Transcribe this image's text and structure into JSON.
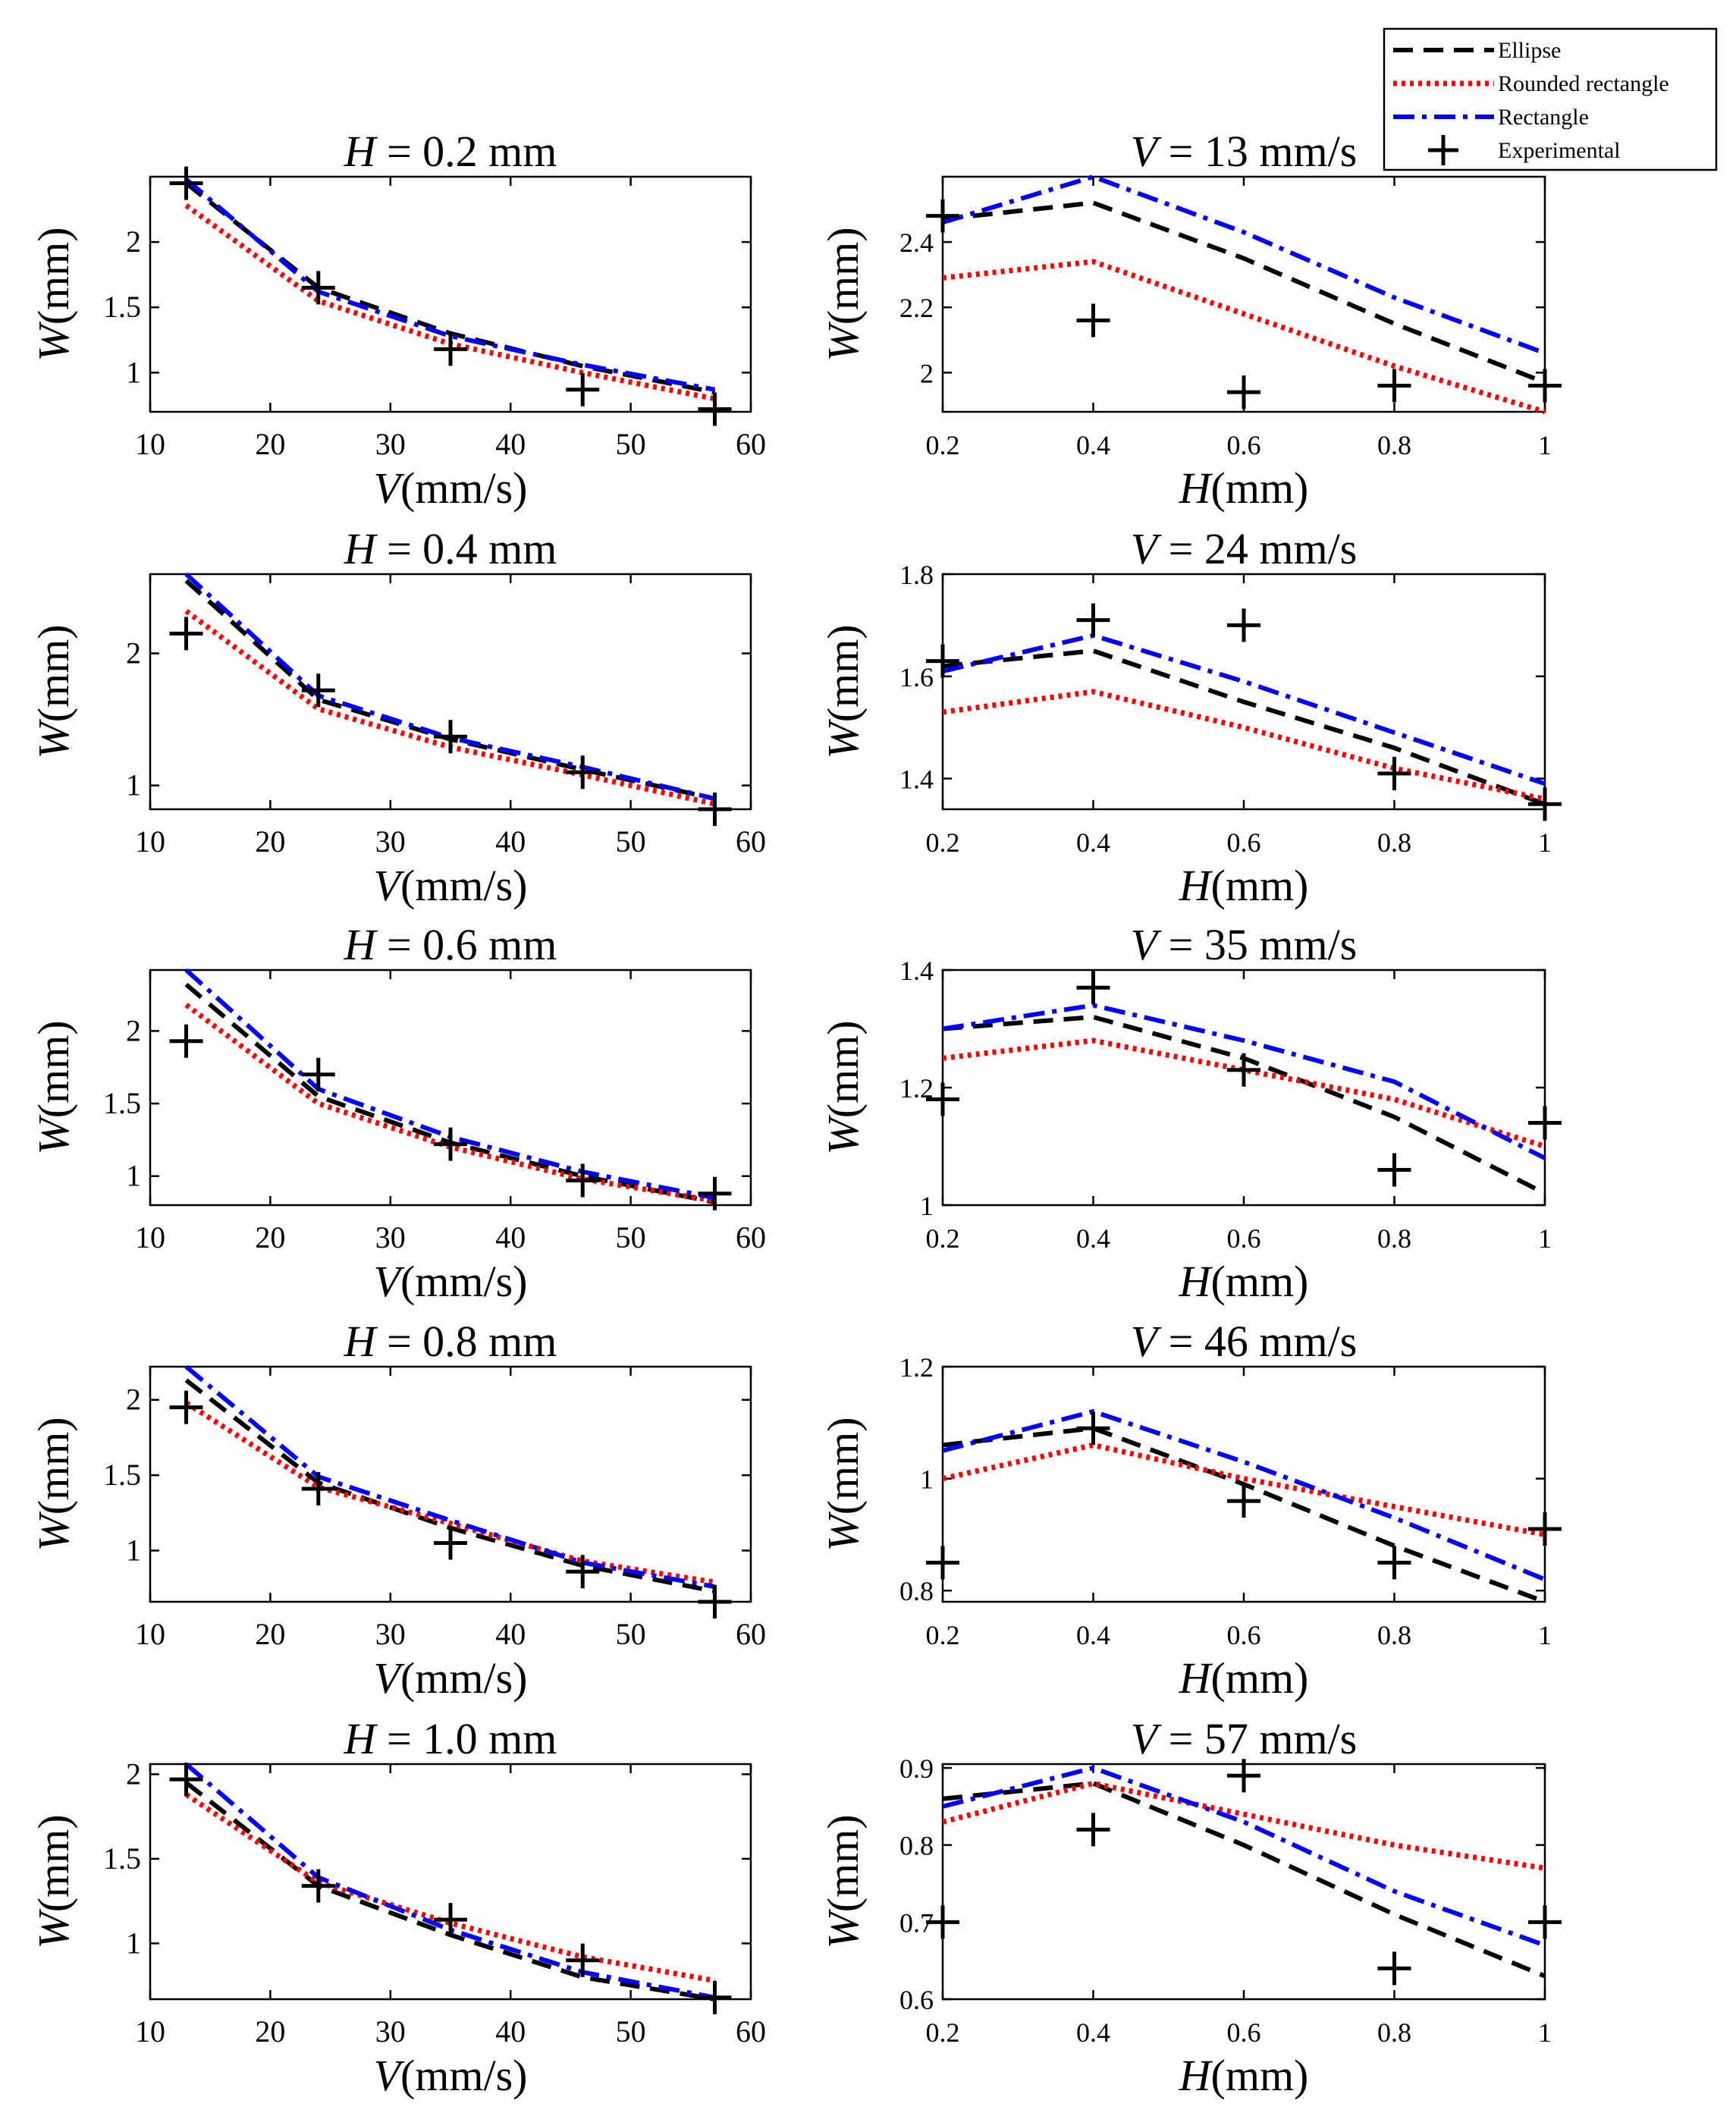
{
  "colors": {
    "ellipse": "#000000",
    "rounded_rectangle": "#ff0000",
    "rectangle": "#0000ff",
    "experimental": "#000000",
    "axes": "#000000",
    "background": "#ffffff"
  },
  "legend": {
    "items": [
      {
        "key": "ellipse",
        "label": "Ellipse",
        "style": "dashed"
      },
      {
        "key": "rounded_rectangle",
        "label": "Rounded rectangle",
        "style": "dotted"
      },
      {
        "key": "rectangle",
        "label": "Rectangle",
        "style": "dashdot"
      },
      {
        "key": "experimental",
        "label": "Experimental",
        "style": "marker-plus"
      }
    ]
  },
  "chart_data": [
    {
      "type": "line",
      "title_var": "H",
      "title_rest": " = 0.2 mm",
      "xlabel_var": "V",
      "xlabel_unit": "(mm/s)",
      "ylabel_var": "W",
      "ylabel_unit": "(mm)",
      "xlim": [
        10,
        60
      ],
      "ylim": [
        0.7,
        2.5
      ],
      "xticks": [
        10,
        20,
        30,
        40,
        50,
        60
      ],
      "yticks": [
        1,
        1.5,
        2
      ],
      "ytick_labels": [
        "1",
        "1.5",
        "2"
      ],
      "x": [
        13,
        24,
        35,
        46,
        57
      ],
      "series": [
        {
          "key": "ellipse",
          "name": "Ellipse",
          "values": [
            2.45,
            1.65,
            1.3,
            1.05,
            0.85
          ]
        },
        {
          "key": "rounded_rectangle",
          "name": "Rounded rectangle",
          "values": [
            2.28,
            1.55,
            1.22,
            1.0,
            0.8
          ]
        },
        {
          "key": "rectangle",
          "name": "Rectangle",
          "values": [
            2.48,
            1.62,
            1.28,
            1.06,
            0.87
          ]
        },
        {
          "key": "experimental",
          "name": "Experimental",
          "values": [
            2.45,
            1.65,
            1.18,
            0.87,
            0.72
          ]
        }
      ]
    },
    {
      "type": "line",
      "title_var": "V",
      "title_rest": " = 13 mm/s",
      "xlabel_var": "H",
      "xlabel_unit": "(mm)",
      "ylabel_var": "W",
      "ylabel_unit": "(mm)",
      "xlim": [
        0.2,
        1.0
      ],
      "ylim": [
        1.88,
        2.6
      ],
      "xticks": [
        0.2,
        0.4,
        0.6,
        0.8,
        1.0
      ],
      "xtick_labels": [
        "0.2",
        "0.4",
        "0.6",
        "0.8",
        "1"
      ],
      "yticks": [
        2.0,
        2.2,
        2.4
      ],
      "ytick_labels": [
        "2",
        "2.2",
        "2.4"
      ],
      "x": [
        0.2,
        0.4,
        0.6,
        0.8,
        1.0
      ],
      "series": [
        {
          "key": "ellipse",
          "name": "Ellipse",
          "values": [
            2.47,
            2.52,
            2.35,
            2.15,
            1.97
          ]
        },
        {
          "key": "rounded_rectangle",
          "name": "Rounded rectangle",
          "values": [
            2.29,
            2.34,
            2.18,
            2.02,
            1.88
          ]
        },
        {
          "key": "rectangle",
          "name": "Rectangle",
          "values": [
            2.46,
            2.6,
            2.43,
            2.23,
            2.06
          ]
        },
        {
          "key": "experimental",
          "name": "Experimental",
          "values": [
            2.48,
            2.16,
            1.94,
            1.96,
            1.96
          ]
        }
      ]
    },
    {
      "type": "line",
      "title_var": "H",
      "title_rest": " = 0.4 mm",
      "xlabel_var": "V",
      "xlabel_unit": "(mm/s)",
      "ylabel_var": "W",
      "ylabel_unit": "(mm)",
      "xlim": [
        10,
        60
      ],
      "ylim": [
        0.82,
        2.6
      ],
      "xticks": [
        10,
        20,
        30,
        40,
        50,
        60
      ],
      "yticks": [
        1,
        2
      ],
      "ytick_labels": [
        "1",
        "2"
      ],
      "x": [
        13,
        24,
        35,
        46,
        57
      ],
      "series": [
        {
          "key": "ellipse",
          "name": "Ellipse",
          "values": [
            2.55,
            1.65,
            1.35,
            1.12,
            0.9
          ]
        },
        {
          "key": "rounded_rectangle",
          "name": "Rounded rectangle",
          "values": [
            2.32,
            1.58,
            1.29,
            1.08,
            0.86
          ]
        },
        {
          "key": "rectangle",
          "name": "Rectangle",
          "values": [
            2.6,
            1.68,
            1.36,
            1.14,
            0.9
          ]
        },
        {
          "key": "experimental",
          "name": "Experimental",
          "values": [
            2.15,
            1.72,
            1.37,
            1.1,
            0.82
          ]
        }
      ]
    },
    {
      "type": "line",
      "title_var": "V",
      "title_rest": " = 24 mm/s",
      "xlabel_var": "H",
      "xlabel_unit": "(mm)",
      "ylabel_var": "W",
      "ylabel_unit": "(mm)",
      "xlim": [
        0.2,
        1.0
      ],
      "ylim": [
        1.34,
        1.8
      ],
      "xticks": [
        0.2,
        0.4,
        0.6,
        0.8,
        1.0
      ],
      "xtick_labels": [
        "0.2",
        "0.4",
        "0.6",
        "0.8",
        "1"
      ],
      "yticks": [
        1.4,
        1.6,
        1.8
      ],
      "ytick_labels": [
        "1.4",
        "1.6",
        "1.8"
      ],
      "x": [
        0.2,
        0.4,
        0.6,
        0.8,
        1.0
      ],
      "series": [
        {
          "key": "ellipse",
          "name": "Ellipse",
          "values": [
            1.62,
            1.65,
            1.55,
            1.46,
            1.35
          ]
        },
        {
          "key": "rounded_rectangle",
          "name": "Rounded rectangle",
          "values": [
            1.53,
            1.57,
            1.5,
            1.42,
            1.36
          ]
        },
        {
          "key": "rectangle",
          "name": "Rectangle",
          "values": [
            1.61,
            1.68,
            1.59,
            1.49,
            1.39
          ]
        },
        {
          "key": "experimental",
          "name": "Experimental",
          "values": [
            1.63,
            1.71,
            1.7,
            1.41,
            1.35
          ]
        }
      ]
    },
    {
      "type": "line",
      "title_var": "H",
      "title_rest": " = 0.6 mm",
      "xlabel_var": "V",
      "xlabel_unit": "(mm/s)",
      "ylabel_var": "W",
      "ylabel_unit": "(mm)",
      "xlim": [
        10,
        60
      ],
      "ylim": [
        0.8,
        2.42
      ],
      "xticks": [
        10,
        20,
        30,
        40,
        50,
        60
      ],
      "yticks": [
        1,
        1.5,
        2
      ],
      "ytick_labels": [
        "1",
        "1.5",
        "2"
      ],
      "x": [
        13,
        24,
        35,
        46,
        57
      ],
      "series": [
        {
          "key": "ellipse",
          "name": "Ellipse",
          "values": [
            2.32,
            1.55,
            1.23,
            1.0,
            0.82
          ]
        },
        {
          "key": "rounded_rectangle",
          "name": "Rounded rectangle",
          "values": [
            2.18,
            1.5,
            1.2,
            0.98,
            0.83
          ]
        },
        {
          "key": "rectangle",
          "name": "Rectangle",
          "values": [
            2.42,
            1.6,
            1.27,
            1.03,
            0.85
          ]
        },
        {
          "key": "experimental",
          "name": "Experimental",
          "values": [
            1.93,
            1.7,
            1.22,
            0.97,
            0.88
          ]
        }
      ]
    },
    {
      "type": "line",
      "title_var": "V",
      "title_rest": " = 35 mm/s",
      "xlabel_var": "H",
      "xlabel_unit": "(mm)",
      "ylabel_var": "W",
      "ylabel_unit": "(mm)",
      "xlim": [
        0.2,
        1.0
      ],
      "ylim": [
        1.0,
        1.4
      ],
      "xticks": [
        0.2,
        0.4,
        0.6,
        0.8,
        1.0
      ],
      "xtick_labels": [
        "0.2",
        "0.4",
        "0.6",
        "0.8",
        "1"
      ],
      "yticks": [
        1.0,
        1.2,
        1.4
      ],
      "ytick_labels": [
        "1",
        "1.2",
        "1.4"
      ],
      "x": [
        0.2,
        0.4,
        0.6,
        0.8,
        1.0
      ],
      "series": [
        {
          "key": "ellipse",
          "name": "Ellipse",
          "values": [
            1.3,
            1.32,
            1.25,
            1.15,
            1.02
          ]
        },
        {
          "key": "rounded_rectangle",
          "name": "Rounded rectangle",
          "values": [
            1.25,
            1.28,
            1.23,
            1.18,
            1.1
          ]
        },
        {
          "key": "rectangle",
          "name": "Rectangle",
          "values": [
            1.3,
            1.34,
            1.28,
            1.21,
            1.08
          ]
        },
        {
          "key": "experimental",
          "name": "Experimental",
          "values": [
            1.18,
            1.37,
            1.23,
            1.06,
            1.14
          ]
        }
      ]
    },
    {
      "type": "line",
      "title_var": "H",
      "title_rest": " = 0.8 mm",
      "xlabel_var": "V",
      "xlabel_unit": "(mm/s)",
      "ylabel_var": "W",
      "ylabel_unit": "(mm)",
      "xlim": [
        10,
        60
      ],
      "ylim": [
        0.66,
        2.22
      ],
      "xticks": [
        10,
        20,
        30,
        40,
        50,
        60
      ],
      "yticks": [
        1,
        1.5,
        2
      ],
      "ytick_labels": [
        "1",
        "1.5",
        "2"
      ],
      "x": [
        13,
        24,
        35,
        46,
        57
      ],
      "series": [
        {
          "key": "ellipse",
          "name": "Ellipse",
          "values": [
            2.13,
            1.45,
            1.15,
            0.9,
            0.73
          ]
        },
        {
          "key": "rounded_rectangle",
          "name": "Rounded rectangle",
          "values": [
            1.98,
            1.42,
            1.18,
            0.93,
            0.79
          ]
        },
        {
          "key": "rectangle",
          "name": "Rectangle",
          "values": [
            2.22,
            1.49,
            1.2,
            0.92,
            0.76
          ]
        },
        {
          "key": "experimental",
          "name": "Experimental",
          "values": [
            1.95,
            1.41,
            1.05,
            0.86,
            0.66
          ]
        }
      ]
    },
    {
      "type": "line",
      "title_var": "V",
      "title_rest": " = 46 mm/s",
      "xlabel_var": "H",
      "xlabel_unit": "(mm)",
      "ylabel_var": "W",
      "ylabel_unit": "(mm)",
      "xlim": [
        0.2,
        1.0
      ],
      "ylim": [
        0.78,
        1.2
      ],
      "xticks": [
        0.2,
        0.4,
        0.6,
        0.8,
        1.0
      ],
      "xtick_labels": [
        "0.2",
        "0.4",
        "0.6",
        "0.8",
        "1"
      ],
      "yticks": [
        0.8,
        1.0,
        1.2
      ],
      "ytick_labels": [
        "0.8",
        "1",
        "1.2"
      ],
      "x": [
        0.2,
        0.4,
        0.6,
        0.8,
        1.0
      ],
      "series": [
        {
          "key": "ellipse",
          "name": "Ellipse",
          "values": [
            1.06,
            1.09,
            0.99,
            0.88,
            0.78
          ]
        },
        {
          "key": "rounded_rectangle",
          "name": "Rounded rectangle",
          "values": [
            1.0,
            1.06,
            1.0,
            0.95,
            0.9
          ]
        },
        {
          "key": "rectangle",
          "name": "Rectangle",
          "values": [
            1.05,
            1.12,
            1.03,
            0.93,
            0.82
          ]
        },
        {
          "key": "experimental",
          "name": "Experimental",
          "values": [
            0.85,
            1.09,
            0.96,
            0.85,
            0.91
          ]
        }
      ]
    },
    {
      "type": "line",
      "title_var": "H",
      "title_rest": " = 1.0 mm",
      "xlabel_var": "V",
      "xlabel_unit": "(mm/s)",
      "ylabel_var": "W",
      "ylabel_unit": "(mm)",
      "xlim": [
        10,
        60
      ],
      "ylim": [
        0.67,
        2.06
      ],
      "xticks": [
        10,
        20,
        30,
        40,
        50,
        60
      ],
      "yticks": [
        1,
        1.5,
        2
      ],
      "ytick_labels": [
        "1",
        "1.5",
        "2"
      ],
      "x": [
        13,
        24,
        35,
        46,
        57
      ],
      "series": [
        {
          "key": "ellipse",
          "name": "Ellipse",
          "values": [
            1.95,
            1.34,
            1.05,
            0.8,
            0.67
          ]
        },
        {
          "key": "rounded_rectangle",
          "name": "Rounded rectangle",
          "values": [
            1.88,
            1.36,
            1.12,
            0.92,
            0.78
          ]
        },
        {
          "key": "rectangle",
          "name": "Rectangle",
          "values": [
            2.06,
            1.39,
            1.08,
            0.83,
            0.68
          ]
        },
        {
          "key": "experimental",
          "name": "Experimental",
          "values": [
            1.97,
            1.34,
            1.14,
            0.9,
            0.68
          ]
        }
      ]
    },
    {
      "type": "line",
      "title_var": "V",
      "title_rest": " = 57 mm/s",
      "xlabel_var": "H",
      "xlabel_unit": "(mm)",
      "ylabel_var": "W",
      "ylabel_unit": "(mm)",
      "xlim": [
        0.2,
        1.0
      ],
      "ylim": [
        0.6,
        0.905
      ],
      "xticks": [
        0.2,
        0.4,
        0.6,
        0.8,
        1.0
      ],
      "xtick_labels": [
        "0.2",
        "0.4",
        "0.6",
        "0.8",
        "1"
      ],
      "yticks": [
        0.6,
        0.7,
        0.8,
        0.9
      ],
      "ytick_labels": [
        "0.6",
        "0.7",
        "0.8",
        "0.9"
      ],
      "x": [
        0.2,
        0.4,
        0.6,
        0.8,
        1.0
      ],
      "series": [
        {
          "key": "ellipse",
          "name": "Ellipse",
          "values": [
            0.86,
            0.88,
            0.8,
            0.71,
            0.63
          ]
        },
        {
          "key": "rounded_rectangle",
          "name": "Rounded rectangle",
          "values": [
            0.83,
            0.88,
            0.84,
            0.8,
            0.77
          ]
        },
        {
          "key": "rectangle",
          "name": "Rectangle",
          "values": [
            0.85,
            0.9,
            0.83,
            0.74,
            0.67
          ]
        },
        {
          "key": "experimental",
          "name": "Experimental",
          "values": [
            0.7,
            0.82,
            0.89,
            0.64,
            0.7
          ]
        }
      ]
    }
  ]
}
